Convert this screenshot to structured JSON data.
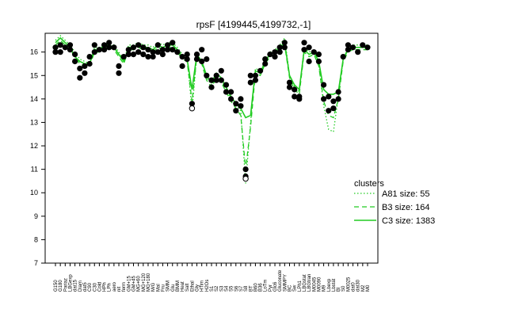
{
  "chart_data": {
    "type": "line",
    "title": "rpsF [4199445,4199732,-1]",
    "xlabel": "",
    "ylabel": "",
    "ylim": [
      7,
      16.8
    ],
    "yticks": [
      7,
      8,
      9,
      10,
      11,
      12,
      13,
      14,
      15,
      16
    ],
    "categories": [
      "G150",
      "G180",
      "Pariaz",
      "LBGexp",
      "dat15",
      "Diam",
      "dat5",
      "C90",
      "C30",
      "Cold",
      "HPh",
      "LPh",
      "aero",
      "nit",
      "ferm",
      "GM+15",
      "GM+45",
      "MG+60",
      "MG+120",
      "MG+180",
      "M/G",
      "Mal",
      "Fru",
      "SMM",
      "Glu",
      "BMM",
      "Heat",
      "Salt",
      "Ethal",
      "Gly",
      "HTim",
      "H2Os",
      "S1",
      "S2",
      "S3",
      "S4",
      "S5",
      "S6",
      "S7",
      "S8",
      "BT",
      "B60",
      "B36",
      "LoTm",
      "Pyr",
      "Glc6",
      "Gluconate",
      "SMMPY",
      "BC",
      "Sw",
      "LPh1",
      "LBGstat",
      "LBGtran",
      "M0045",
      "M0090",
      "M9",
      "Lbexp",
      "Lbstat",
      "BI",
      "S0",
      "M0025",
      "dat0",
      "dat30",
      "M2",
      "M0"
    ],
    "series": [
      {
        "name": "A81 size: 55",
        "style": "dotted",
        "values": [
          16.5,
          16.7,
          16.5,
          16.3,
          16.0,
          15.7,
          15.6,
          15.5,
          16.2,
          16.2,
          16.3,
          16.4,
          16.3,
          16.0,
          15.6,
          16.3,
          16.3,
          16.4,
          16.3,
          16.3,
          16.2,
          16.4,
          16.3,
          16.4,
          16.4,
          16.2,
          15.9,
          15.8,
          13.5,
          15.9,
          15.6,
          14.9,
          14.6,
          15.0,
          14.8,
          14.4,
          14.0,
          13.7,
          13.5,
          10.4,
          13.0,
          15.3,
          15.2,
          15.6,
          16.0,
          16.1,
          16.3,
          16.6,
          15.0,
          14.5,
          14.3,
          16.2,
          16.0,
          16.1,
          15.5,
          13.7,
          12.7,
          12.6,
          14.1,
          15.7,
          16.2,
          16.3,
          16.3,
          16.3,
          16.3
        ]
      },
      {
        "name": "B3 size: 164",
        "style": "dashed",
        "values": [
          16.3,
          16.5,
          16.3,
          16.1,
          15.8,
          15.5,
          15.4,
          15.4,
          16.0,
          16.0,
          16.2,
          16.2,
          16.1,
          15.8,
          15.5,
          16.1,
          16.1,
          16.2,
          16.1,
          16.1,
          16.0,
          16.2,
          16.1,
          16.2,
          16.2,
          16.0,
          15.7,
          15.6,
          13.9,
          15.8,
          15.5,
          14.8,
          14.5,
          14.9,
          14.7,
          14.3,
          13.9,
          13.6,
          13.3,
          11.0,
          12.8,
          15.1,
          15.0,
          15.5,
          15.8,
          15.9,
          16.1,
          16.3,
          14.9,
          14.4,
          14.2,
          16.0,
          15.8,
          15.9,
          15.4,
          13.9,
          13.3,
          13.2,
          14.0,
          15.6,
          16.0,
          16.1,
          16.1,
          16.1,
          16.1
        ]
      },
      {
        "name": "C3 size: 1383",
        "style": "solid",
        "values": [
          16.4,
          16.6,
          16.4,
          16.2,
          15.8,
          15.6,
          15.5,
          15.5,
          16.1,
          16.1,
          16.3,
          16.3,
          16.2,
          15.9,
          15.6,
          16.2,
          16.2,
          16.3,
          16.2,
          16.2,
          16.1,
          16.3,
          16.2,
          16.3,
          16.3,
          16.1,
          15.8,
          15.7,
          14.4,
          15.9,
          15.6,
          15.0,
          14.7,
          15.1,
          14.9,
          14.5,
          14.1,
          13.8,
          13.6,
          13.2,
          13.3,
          15.2,
          15.1,
          15.6,
          15.9,
          16.0,
          16.2,
          16.4,
          15.0,
          14.6,
          14.4,
          16.1,
          15.9,
          16.0,
          15.6,
          14.4,
          14.2,
          14.2,
          14.3,
          15.7,
          16.1,
          16.2,
          16.2,
          16.2,
          16.2
        ]
      }
    ],
    "points": [
      {
        "cat": 0,
        "y": 16.2
      },
      {
        "cat": 0,
        "y": 16.0
      },
      {
        "cat": 1,
        "y": 16.3
      },
      {
        "cat": 1,
        "y": 16.0
      },
      {
        "cat": 2,
        "y": 16.2
      },
      {
        "cat": 3,
        "y": 16.3
      },
      {
        "cat": 3,
        "y": 16.1
      },
      {
        "cat": 4,
        "y": 15.9
      },
      {
        "cat": 4,
        "y": 15.6
      },
      {
        "cat": 5,
        "y": 15.3
      },
      {
        "cat": 5,
        "y": 14.9
      },
      {
        "cat": 6,
        "y": 15.4
      },
      {
        "cat": 6,
        "y": 15.1
      },
      {
        "cat": 7,
        "y": 15.8
      },
      {
        "cat": 7,
        "y": 15.5
      },
      {
        "cat": 8,
        "y": 16.3
      },
      {
        "cat": 8,
        "y": 16.0
      },
      {
        "cat": 9,
        "y": 16.1
      },
      {
        "cat": 10,
        "y": 16.3
      },
      {
        "cat": 10,
        "y": 16.1
      },
      {
        "cat": 11,
        "y": 16.4
      },
      {
        "cat": 11,
        "y": 16.2
      },
      {
        "cat": 12,
        "y": 16.2
      },
      {
        "cat": 13,
        "y": 15.4
      },
      {
        "cat": 13,
        "y": 15.1
      },
      {
        "cat": 14,
        "y": 15.8
      },
      {
        "cat": 15,
        "y": 16.1
      },
      {
        "cat": 15,
        "y": 15.9
      },
      {
        "cat": 16,
        "y": 16.2
      },
      {
        "cat": 16,
        "y": 15.9
      },
      {
        "cat": 17,
        "y": 16.3
      },
      {
        "cat": 17,
        "y": 16.0
      },
      {
        "cat": 18,
        "y": 16.2
      },
      {
        "cat": 18,
        "y": 15.9
      },
      {
        "cat": 19,
        "y": 16.1
      },
      {
        "cat": 19,
        "y": 15.8
      },
      {
        "cat": 20,
        "y": 16.0
      },
      {
        "cat": 20,
        "y": 15.8
      },
      {
        "cat": 21,
        "y": 16.3
      },
      {
        "cat": 21,
        "y": 16.0
      },
      {
        "cat": 22,
        "y": 16.1
      },
      {
        "cat": 22,
        "y": 15.9
      },
      {
        "cat": 23,
        "y": 16.3
      },
      {
        "cat": 23,
        "y": 16.1
      },
      {
        "cat": 24,
        "y": 16.4
      },
      {
        "cat": 24,
        "y": 16.1
      },
      {
        "cat": 25,
        "y": 16.0
      },
      {
        "cat": 26,
        "y": 15.8
      },
      {
        "cat": 26,
        "y": 15.4
      },
      {
        "cat": 27,
        "y": 15.9
      },
      {
        "cat": 27,
        "y": 15.7
      },
      {
        "cat": 28,
        "y": 13.8
      },
      {
        "cat": 28,
        "y": 13.6
      },
      {
        "cat": 29,
        "y": 15.9
      },
      {
        "cat": 29,
        "y": 15.7
      },
      {
        "cat": 30,
        "y": 16.1
      },
      {
        "cat": 30,
        "y": 15.6
      },
      {
        "cat": 31,
        "y": 15.7
      },
      {
        "cat": 31,
        "y": 15.0
      },
      {
        "cat": 32,
        "y": 14.8
      },
      {
        "cat": 32,
        "y": 14.5
      },
      {
        "cat": 33,
        "y": 15.0
      },
      {
        "cat": 33,
        "y": 14.8
      },
      {
        "cat": 34,
        "y": 15.2
      },
      {
        "cat": 34,
        "y": 14.8
      },
      {
        "cat": 35,
        "y": 14.6
      },
      {
        "cat": 35,
        "y": 14.3
      },
      {
        "cat": 36,
        "y": 14.3
      },
      {
        "cat": 36,
        "y": 14.0
      },
      {
        "cat": 37,
        "y": 13.8
      },
      {
        "cat": 37,
        "y": 13.5
      },
      {
        "cat": 38,
        "y": 14.0
      },
      {
        "cat": 38,
        "y": 13.7
      },
      {
        "cat": 39,
        "y": 11.0
      },
      {
        "cat": 39,
        "y": 10.7
      },
      {
        "cat": 39,
        "y": 10.6
      },
      {
        "cat": 40,
        "y": 15.0
      },
      {
        "cat": 40,
        "y": 14.7
      },
      {
        "cat": 41,
        "y": 15.0
      },
      {
        "cat": 41,
        "y": 14.8
      },
      {
        "cat": 42,
        "y": 15.2
      },
      {
        "cat": 43,
        "y": 15.7
      },
      {
        "cat": 43,
        "y": 15.5
      },
      {
        "cat": 44,
        "y": 15.9
      },
      {
        "cat": 45,
        "y": 16.0
      },
      {
        "cat": 45,
        "y": 15.8
      },
      {
        "cat": 46,
        "y": 16.2
      },
      {
        "cat": 46,
        "y": 16.0
      },
      {
        "cat": 47,
        "y": 16.4
      },
      {
        "cat": 47,
        "y": 16.2
      },
      {
        "cat": 48,
        "y": 14.7
      },
      {
        "cat": 48,
        "y": 14.5
      },
      {
        "cat": 49,
        "y": 14.4
      },
      {
        "cat": 49,
        "y": 14.1
      },
      {
        "cat": 50,
        "y": 14.1
      },
      {
        "cat": 50,
        "y": 14.0
      },
      {
        "cat": 51,
        "y": 16.4
      },
      {
        "cat": 51,
        "y": 16.1
      },
      {
        "cat": 52,
        "y": 16.2
      },
      {
        "cat": 52,
        "y": 15.6
      },
      {
        "cat": 53,
        "y": 16.0
      },
      {
        "cat": 54,
        "y": 15.9
      },
      {
        "cat": 54,
        "y": 15.6
      },
      {
        "cat": 55,
        "y": 14.6
      },
      {
        "cat": 55,
        "y": 14.0
      },
      {
        "cat": 56,
        "y": 14.1
      },
      {
        "cat": 56,
        "y": 13.5
      },
      {
        "cat": 57,
        "y": 13.9
      },
      {
        "cat": 57,
        "y": 13.6
      },
      {
        "cat": 58,
        "y": 14.3
      },
      {
        "cat": 58,
        "y": 14.0
      },
      {
        "cat": 59,
        "y": 15.8
      },
      {
        "cat": 60,
        "y": 16.3
      },
      {
        "cat": 60,
        "y": 16.1
      },
      {
        "cat": 61,
        "y": 16.2
      },
      {
        "cat": 62,
        "y": 16.0
      },
      {
        "cat": 63,
        "y": 16.3
      },
      {
        "cat": 64,
        "y": 16.2
      }
    ],
    "legend": {
      "title": "clusters",
      "placement": "right"
    },
    "grid": false
  }
}
